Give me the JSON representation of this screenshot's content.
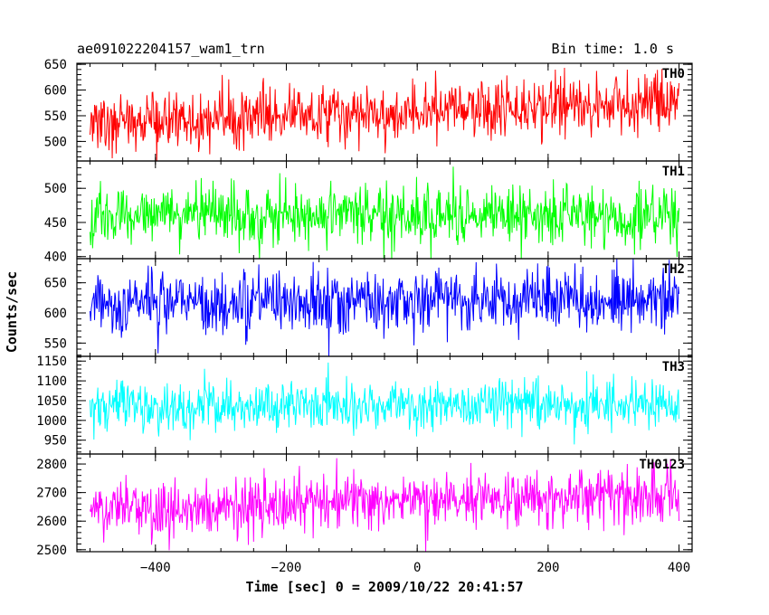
{
  "header": {
    "title": "ae091022204157_wam1_trn",
    "bin_time": "Bin time: 1.0 s"
  },
  "chart_data": {
    "type": "line",
    "xlabel": "Time [sec] 0 = 2009/10/22 20:41:57",
    "ylabel": "Counts/sec",
    "xlim": [
      -520,
      420
    ],
    "x_ticks": [
      -400,
      -200,
      0,
      200,
      400
    ],
    "x_range": [
      -500,
      400
    ],
    "x_step": 1,
    "panels": [
      {
        "label": "TH0",
        "color": "#ff0000",
        "ylim": [
          462,
          652
        ],
        "y_ticks": [
          500,
          550,
          600,
          650
        ],
        "mean_start": 535,
        "mean_end": 575,
        "noise": 28,
        "spike_max": 660,
        "spike_min": 460
      },
      {
        "label": "TH1",
        "color": "#00ff00",
        "ylim": [
          397,
          540
        ],
        "y_ticks": [
          400,
          450,
          500
        ],
        "mean_start": 460,
        "mean_end": 462,
        "noise": 22,
        "spike_max": 540,
        "spike_min": 395
      },
      {
        "label": "TH2",
        "color": "#0000ff",
        "ylim": [
          528,
          690
        ],
        "y_ticks": [
          550,
          600,
          650
        ],
        "mean_start": 620,
        "mean_end": 622,
        "noise": 26,
        "spike_max": 690,
        "spike_min": 528
      },
      {
        "label": "TH3",
        "color": "#00ffff",
        "ylim": [
          915,
          1162
        ],
        "y_ticks": [
          950,
          1000,
          1050,
          1100,
          1150
        ],
        "mean_start": 1035,
        "mean_end": 1040,
        "noise": 32,
        "spike_max": 1160,
        "spike_min": 915
      },
      {
        "label": "TH0123",
        "color": "#ff00ff",
        "ylim": [
          2493,
          2835
        ],
        "y_ticks": [
          2500,
          2600,
          2700,
          2800
        ],
        "mean_start": 2640,
        "mean_end": 2690,
        "noise": 52,
        "spike_max": 2835,
        "spike_min": 2493
      }
    ]
  }
}
